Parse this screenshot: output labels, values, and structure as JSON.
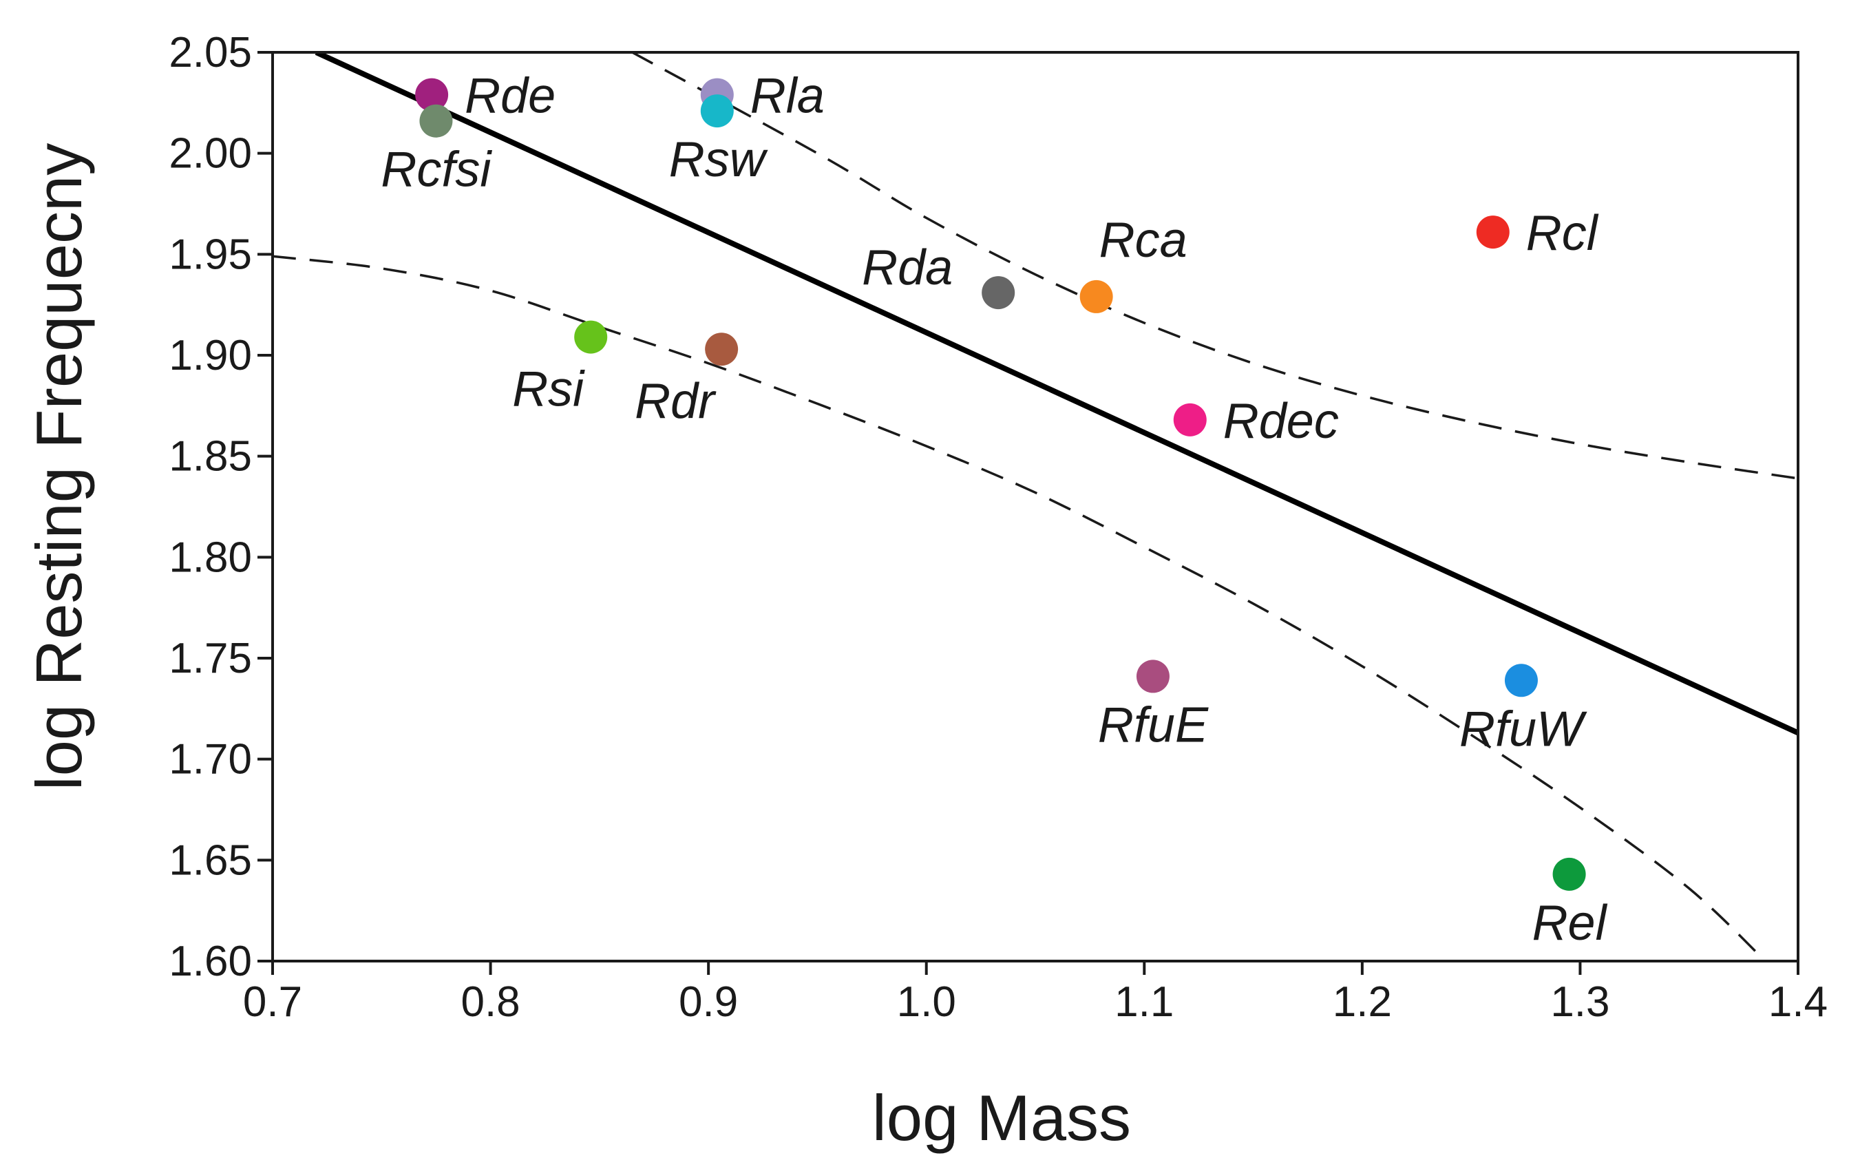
{
  "chart_data": {
    "type": "scatter",
    "title": "",
    "xlabel": "log Mass",
    "ylabel": "log Resting Frequecny",
    "xlim": [
      0.7,
      1.4
    ],
    "ylim": [
      1.6,
      2.05
    ],
    "xticks": [
      0.7,
      0.8,
      0.9,
      1.0,
      1.1,
      1.2,
      1.3,
      1.4
    ],
    "xtick_labels": [
      "0.7",
      "0.8",
      "0.9",
      "1.0",
      "1.1",
      "1.2",
      "1.3",
      "1.4"
    ],
    "yticks": [
      1.6,
      1.65,
      1.7,
      1.75,
      1.8,
      1.85,
      1.9,
      1.95,
      2.0,
      2.05
    ],
    "ytick_labels": [
      "1.60",
      "1.65",
      "1.70",
      "1.75",
      "1.80",
      "1.85",
      "1.90",
      "1.95",
      "2.00",
      "2.05"
    ],
    "grid": false,
    "points": [
      {
        "label": "Rde",
        "x": 0.773,
        "y": 2.029,
        "color": "#a0207e",
        "label_pos": "right"
      },
      {
        "label": "Rcfsi",
        "x": 0.775,
        "y": 2.016,
        "color": "#6f8a6c",
        "label_pos": "below"
      },
      {
        "label": "Rla",
        "x": 0.904,
        "y": 2.029,
        "color": "#9b8ec4",
        "label_pos": "right"
      },
      {
        "label": "Rsw",
        "x": 0.904,
        "y": 2.021,
        "color": "#17b7c9",
        "label_pos": "below"
      },
      {
        "label": "Rda",
        "x": 1.033,
        "y": 1.931,
        "color": "#666666",
        "label_pos": "upper-left"
      },
      {
        "label": "Rca",
        "x": 1.078,
        "y": 1.929,
        "color": "#f7891f",
        "label_pos": "upper-right"
      },
      {
        "label": "Rcl",
        "x": 1.26,
        "y": 1.961,
        "color": "#ee2b23",
        "label_pos": "right"
      },
      {
        "label": "Rsi",
        "x": 0.846,
        "y": 1.909,
        "color": "#66c21b",
        "label_pos": "lower-left"
      },
      {
        "label": "Rdr",
        "x": 0.906,
        "y": 1.903,
        "color": "#a85a3f",
        "label_pos": "lower-left"
      },
      {
        "label": "Rdec",
        "x": 1.121,
        "y": 1.868,
        "color": "#ee1e87",
        "label_pos": "right"
      },
      {
        "label": "RfuE",
        "x": 1.104,
        "y": 1.741,
        "color": "#a94d7f",
        "label_pos": "below"
      },
      {
        "label": "RfuW",
        "x": 1.273,
        "y": 1.739,
        "color": "#1b8ee0",
        "label_pos": "below"
      },
      {
        "label": "Rel",
        "x": 1.295,
        "y": 1.643,
        "color": "#0d9a3c",
        "label_pos": "below"
      }
    ],
    "regression_line": {
      "x": [
        0.72,
        1.4
      ],
      "y": [
        2.05,
        1.713
      ],
      "style": "solid",
      "color": "#000000"
    },
    "confidence_bands": [
      {
        "name": "upper",
        "style": "dashed",
        "color": "#1a1a1a",
        "x": [
          0.865,
          0.95,
          1.0,
          1.05,
          1.1,
          1.15,
          1.2,
          1.25,
          1.3,
          1.35,
          1.4
        ],
        "y": [
          2.05,
          2.0,
          1.968,
          1.94,
          1.916,
          1.896,
          1.88,
          1.867,
          1.856,
          1.847,
          1.839
        ]
      },
      {
        "name": "lower",
        "style": "dashed",
        "color": "#1a1a1a",
        "x": [
          0.7,
          0.75,
          0.8,
          0.85,
          0.9,
          0.95,
          1.0,
          1.05,
          1.1,
          1.15,
          1.2,
          1.25,
          1.3,
          1.35,
          1.385
        ],
        "y": [
          1.949,
          1.943,
          1.932,
          1.914,
          1.896,
          1.876,
          1.855,
          1.832,
          1.805,
          1.777,
          1.746,
          1.712,
          1.676,
          1.636,
          1.6
        ]
      }
    ]
  }
}
